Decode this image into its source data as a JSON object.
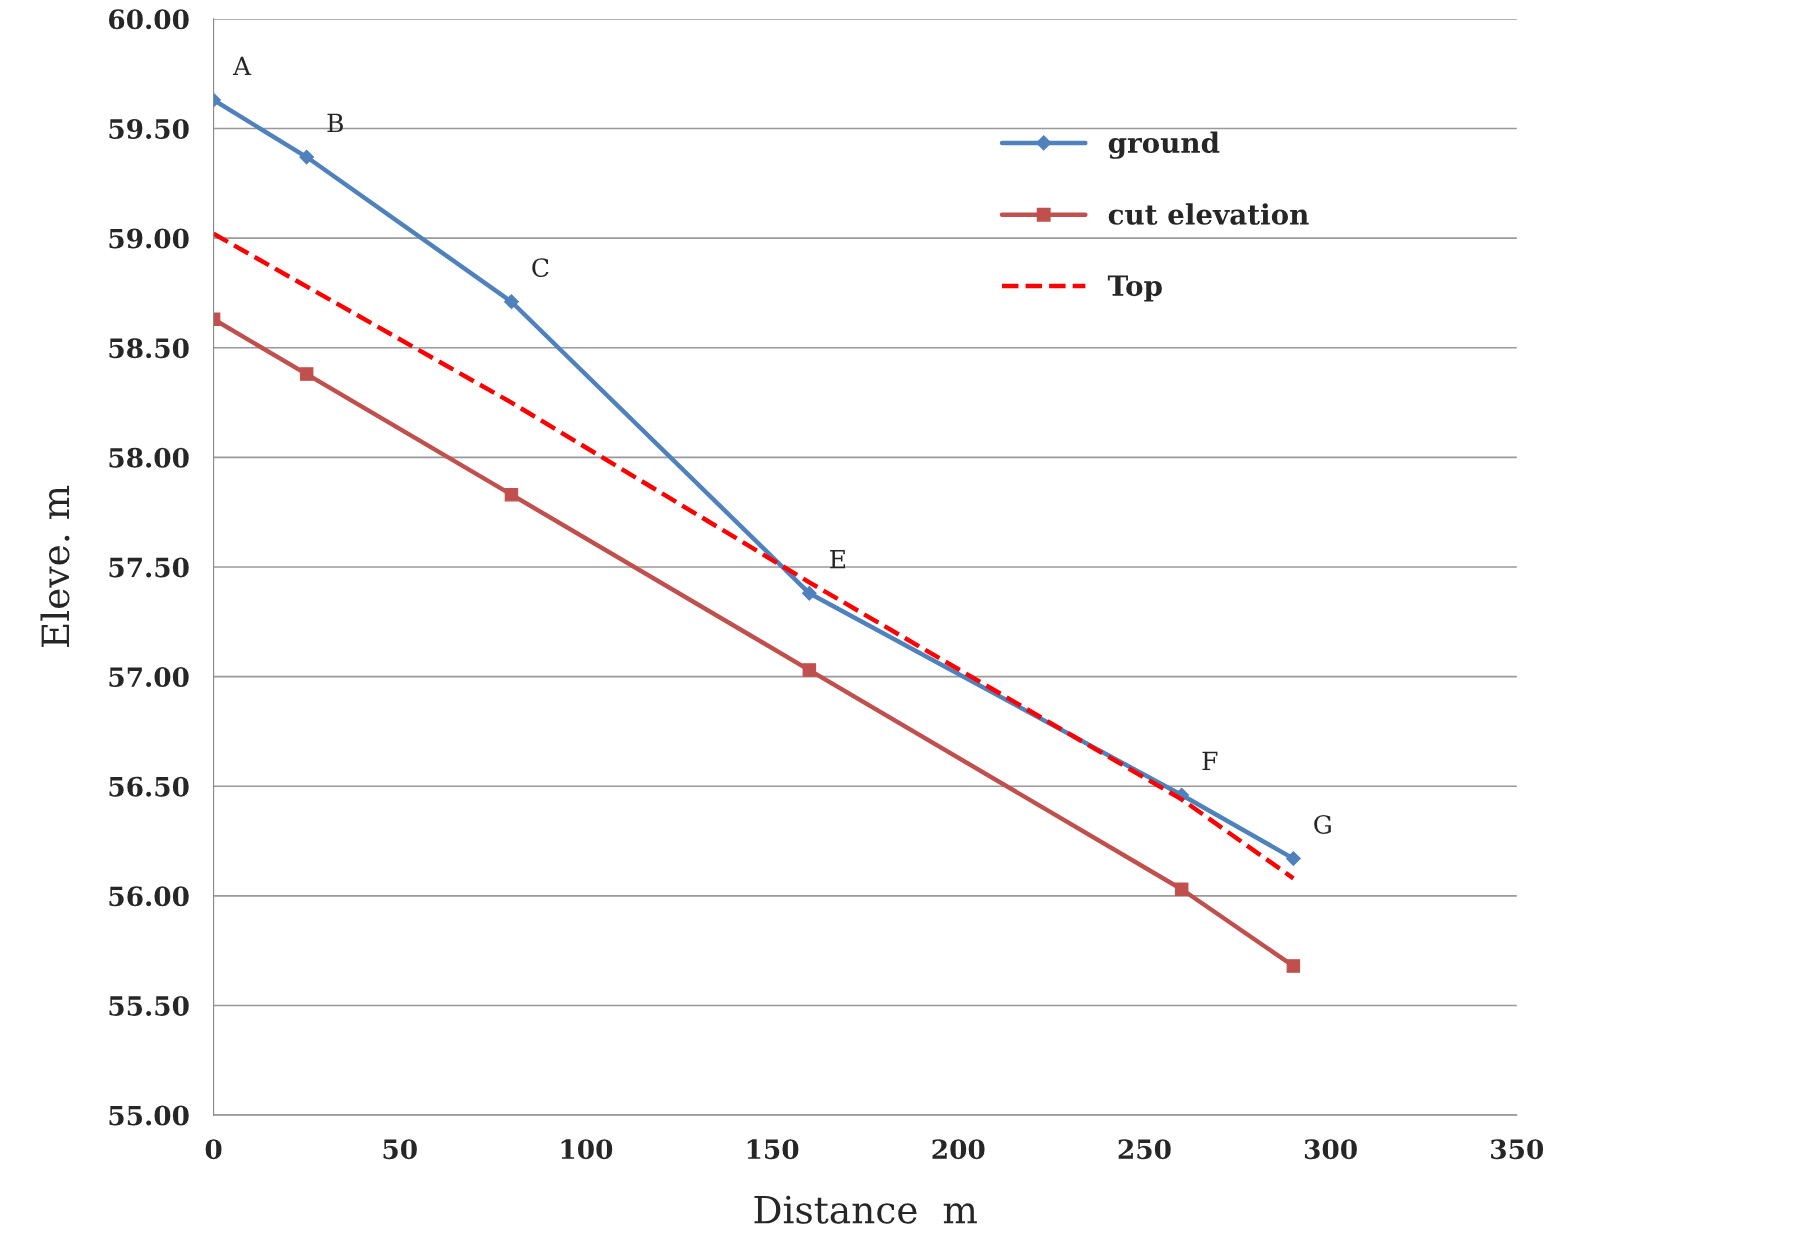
{
  "chart_data": {
    "type": "line",
    "xlabel": "Distance  m",
    "ylabel": "Eleve. m",
    "xlim": [
      0,
      350
    ],
    "xticks": [
      0,
      50,
      100,
      150,
      200,
      250,
      300,
      350
    ],
    "ylim": [
      55,
      60
    ],
    "yticks": [
      {
        "value": 55,
        "label": "55.00"
      },
      {
        "value": 55.5,
        "label": "55.50"
      },
      {
        "value": 56,
        "label": "56.00"
      },
      {
        "value": 56.5,
        "label": "56.50"
      },
      {
        "value": 57,
        "label": "57.00"
      },
      {
        "value": 57.5,
        "label": "57.50"
      },
      {
        "value": 58,
        "label": "58.00"
      },
      {
        "value": 58.5,
        "label": "58.50"
      },
      {
        "value": 59,
        "label": "59.00"
      },
      {
        "value": 59.5,
        "label": "59.50"
      },
      {
        "value": 60,
        "label": "60.00"
      }
    ],
    "grid": "y",
    "legend": "top right",
    "series": [
      {
        "name": "ground",
        "color": "#4f81bd",
        "marker": "diamond",
        "line_style": "solid",
        "x": [
          0,
          25,
          80,
          160,
          260,
          290
        ],
        "values": [
          59.63,
          59.37,
          58.71,
          57.38,
          56.46,
          56.17
        ]
      },
      {
        "name": "cut elevation",
        "color": "#c0504d",
        "marker": "square",
        "line_style": "solid",
        "x": [
          0,
          25,
          80,
          160,
          260,
          290
        ],
        "values": [
          58.63,
          58.38,
          57.83,
          57.03,
          56.03,
          55.68
        ]
      },
      {
        "name": "Top",
        "color": "#ff0000",
        "marker": "none",
        "line_style": "dashed",
        "x": [
          0,
          80,
          160,
          260,
          290
        ],
        "values": [
          59.02,
          58.25,
          57.43,
          56.44,
          56.08
        ]
      }
    ],
    "annotations": [
      {
        "text": "A",
        "x": 0,
        "y": 59.63
      },
      {
        "text": "B",
        "x": 25,
        "y": 59.37
      },
      {
        "text": "C",
        "x": 80,
        "y": 58.71
      },
      {
        "text": "E",
        "x": 160,
        "y": 57.38
      },
      {
        "text": "F",
        "x": 260,
        "y": 56.46
      },
      {
        "text": "G",
        "x": 290,
        "y": 56.17
      }
    ]
  }
}
